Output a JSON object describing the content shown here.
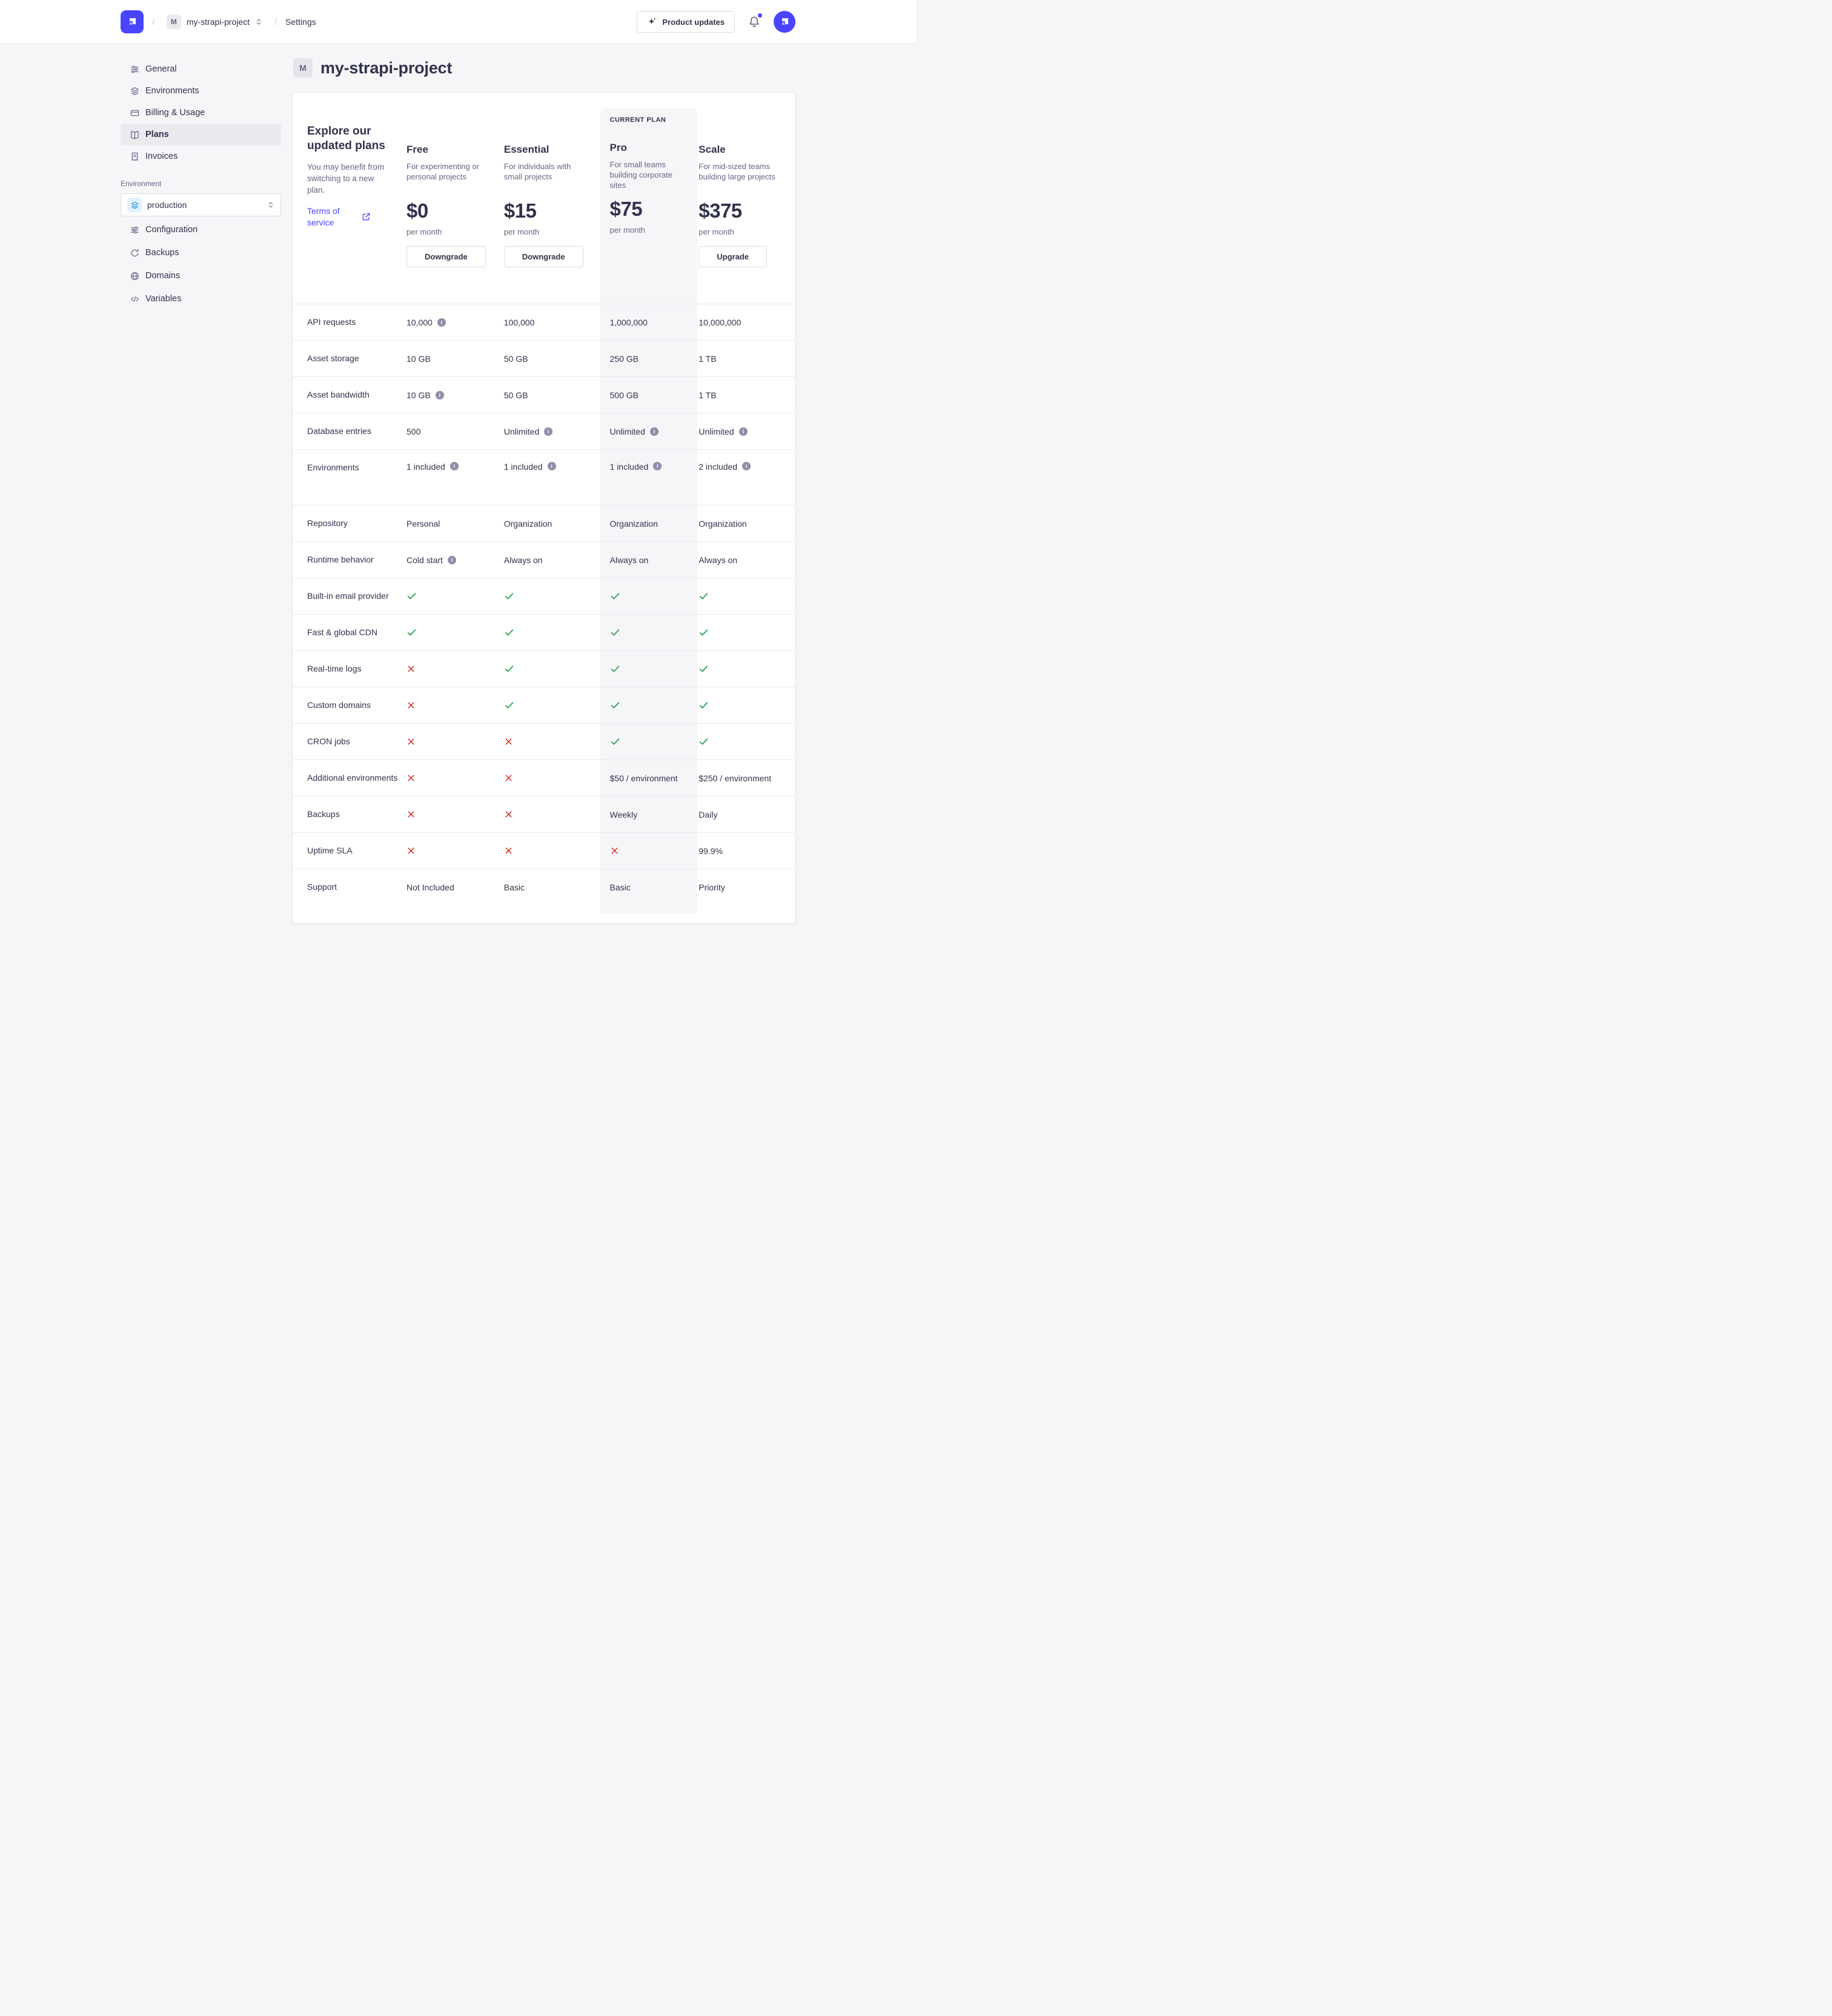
{
  "colors": {
    "accent": "#4945ff",
    "success": "#2f9e55",
    "danger": "#d02b20",
    "highlight": "#f6f6f9"
  },
  "header": {
    "separator": "/",
    "project_chip": {
      "initial": "M",
      "name": "my-strapi-project"
    },
    "settings_label": "Settings",
    "product_updates_label": "Product updates"
  },
  "sidebar": {
    "items": [
      {
        "label": "General"
      },
      {
        "label": "Environments"
      },
      {
        "label": "Billing & Usage"
      },
      {
        "label": "Plans"
      },
      {
        "label": "Invoices"
      }
    ],
    "environment_label": "Environment",
    "environment_value": "production",
    "environment_items": [
      {
        "label": "Configuration"
      },
      {
        "label": "Backups"
      },
      {
        "label": "Domains"
      },
      {
        "label": "Variables"
      }
    ]
  },
  "page": {
    "initial": "M",
    "title": "my-strapi-project"
  },
  "plans": {
    "intro_title": "Explore our updated plans",
    "intro_subtitle": "You may benefit from switching to a new plan.",
    "terms_link": "Terms of service",
    "current_plan_badge": "CURRENT PLAN",
    "columns": [
      {
        "name": "Free",
        "description": "For experimenting or personal projects",
        "price": "$0",
        "period": "per month",
        "action": "Downgrade",
        "current": false
      },
      {
        "name": "Essential",
        "description": "For individuals with small projects",
        "price": "$15",
        "period": "per month",
        "action": "Downgrade",
        "current": false
      },
      {
        "name": "Pro",
        "description": "For small teams building corporate sites",
        "price": "$75",
        "period": "per month",
        "action": null,
        "current": true
      },
      {
        "name": "Scale",
        "description": "For mid-sized teams building large projects",
        "price": "$375",
        "period": "per month",
        "action": "Upgrade",
        "current": false
      }
    ],
    "features": [
      {
        "label": "API requests",
        "tall": false,
        "values": [
          {
            "type": "text",
            "text": "10,000",
            "info": true
          },
          {
            "type": "text",
            "text": "100,000",
            "info": false
          },
          {
            "type": "text",
            "text": "1,000,000",
            "info": false
          },
          {
            "type": "text",
            "text": "10,000,000",
            "info": false
          }
        ]
      },
      {
        "label": "Asset storage",
        "tall": false,
        "values": [
          {
            "type": "text",
            "text": "10 GB",
            "info": false
          },
          {
            "type": "text",
            "text": "50 GB",
            "info": false
          },
          {
            "type": "text",
            "text": "250 GB",
            "info": false
          },
          {
            "type": "text",
            "text": "1 TB",
            "info": false
          }
        ]
      },
      {
        "label": "Asset bandwidth",
        "tall": false,
        "values": [
          {
            "type": "text",
            "text": "10 GB",
            "info": true
          },
          {
            "type": "text",
            "text": "50 GB",
            "info": false
          },
          {
            "type": "text",
            "text": "500 GB",
            "info": false
          },
          {
            "type": "text",
            "text": "1 TB",
            "info": false
          }
        ]
      },
      {
        "label": "Database entries",
        "tall": false,
        "values": [
          {
            "type": "text",
            "text": "500",
            "info": false
          },
          {
            "type": "text",
            "text": "Unlimited",
            "info": true
          },
          {
            "type": "text",
            "text": "Unlimited",
            "info": true
          },
          {
            "type": "text",
            "text": "Unlimited",
            "info": true
          }
        ]
      },
      {
        "label": "Environments",
        "tall": true,
        "values": [
          {
            "type": "text",
            "text": "1 included",
            "info": true
          },
          {
            "type": "text",
            "text": "1 included",
            "info": true
          },
          {
            "type": "text",
            "text": "1 included",
            "info": true
          },
          {
            "type": "text",
            "text": "2 included",
            "info": true
          }
        ]
      },
      {
        "label": "Repository",
        "tall": false,
        "values": [
          {
            "type": "text",
            "text": "Personal",
            "info": false
          },
          {
            "type": "text",
            "text": "Organization",
            "info": false
          },
          {
            "type": "text",
            "text": "Organization",
            "info": false
          },
          {
            "type": "text",
            "text": "Organization",
            "info": false
          }
        ]
      },
      {
        "label": "Runtime behavior",
        "tall": false,
        "values": [
          {
            "type": "text",
            "text": "Cold start",
            "info": true
          },
          {
            "type": "text",
            "text": "Always on",
            "info": false
          },
          {
            "type": "text",
            "text": "Always on",
            "info": false
          },
          {
            "type": "text",
            "text": "Always on",
            "info": false
          }
        ]
      },
      {
        "label": "Built-in email provider",
        "tall": false,
        "values": [
          {
            "type": "check"
          },
          {
            "type": "check"
          },
          {
            "type": "check"
          },
          {
            "type": "check"
          }
        ]
      },
      {
        "label": "Fast & global CDN",
        "tall": false,
        "values": [
          {
            "type": "check"
          },
          {
            "type": "check"
          },
          {
            "type": "check"
          },
          {
            "type": "check"
          }
        ]
      },
      {
        "label": "Real-time logs",
        "tall": false,
        "values": [
          {
            "type": "cross"
          },
          {
            "type": "check"
          },
          {
            "type": "check"
          },
          {
            "type": "check"
          }
        ]
      },
      {
        "label": "Custom domains",
        "tall": false,
        "values": [
          {
            "type": "cross"
          },
          {
            "type": "check"
          },
          {
            "type": "check"
          },
          {
            "type": "check"
          }
        ]
      },
      {
        "label": "CRON jobs",
        "tall": false,
        "values": [
          {
            "type": "cross"
          },
          {
            "type": "cross"
          },
          {
            "type": "check"
          },
          {
            "type": "check"
          }
        ]
      },
      {
        "label": "Additional environments",
        "tall": false,
        "values": [
          {
            "type": "cross"
          },
          {
            "type": "cross"
          },
          {
            "type": "text",
            "text": "$50 / environment",
            "info": false
          },
          {
            "type": "text",
            "text": "$250 / environment",
            "info": false
          }
        ]
      },
      {
        "label": "Backups",
        "tall": false,
        "values": [
          {
            "type": "cross"
          },
          {
            "type": "cross"
          },
          {
            "type": "text",
            "text": "Weekly",
            "info": false
          },
          {
            "type": "text",
            "text": "Daily",
            "info": false
          }
        ]
      },
      {
        "label": "Uptime SLA",
        "tall": false,
        "values": [
          {
            "type": "cross"
          },
          {
            "type": "cross"
          },
          {
            "type": "cross"
          },
          {
            "type": "text",
            "text": "99.9%",
            "info": false
          }
        ]
      },
      {
        "label": "Support",
        "tall": false,
        "values": [
          {
            "type": "text",
            "text": "Not Included",
            "info": false
          },
          {
            "type": "text",
            "text": "Basic",
            "info": false
          },
          {
            "type": "text",
            "text": "Basic",
            "info": false
          },
          {
            "type": "text",
            "text": "Priority",
            "info": false
          }
        ]
      }
    ]
  }
}
